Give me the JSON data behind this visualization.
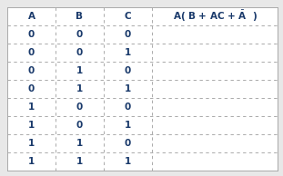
{
  "rows": [
    [
      "0",
      "0",
      "0"
    ],
    [
      "0",
      "0",
      "1"
    ],
    [
      "0",
      "1",
      "0"
    ],
    [
      "0",
      "1",
      "1"
    ],
    [
      "1",
      "0",
      "0"
    ],
    [
      "1",
      "0",
      "1"
    ],
    [
      "1",
      "1",
      "0"
    ],
    [
      "1",
      "1",
      "1"
    ]
  ],
  "col_headers": [
    "A",
    "B",
    "C"
  ],
  "last_header": "A( B + AC + $\\bar{A}$  )",
  "header_color": "#1a3a6b",
  "data_color": "#1a3a6b",
  "bg_color": "#e8e8e8",
  "table_bg": "#ffffff",
  "grid_color": "#aaaaaa",
  "figsize": [
    3.11,
    1.94
  ],
  "dpi": 100,
  "fontsize": 7.5
}
